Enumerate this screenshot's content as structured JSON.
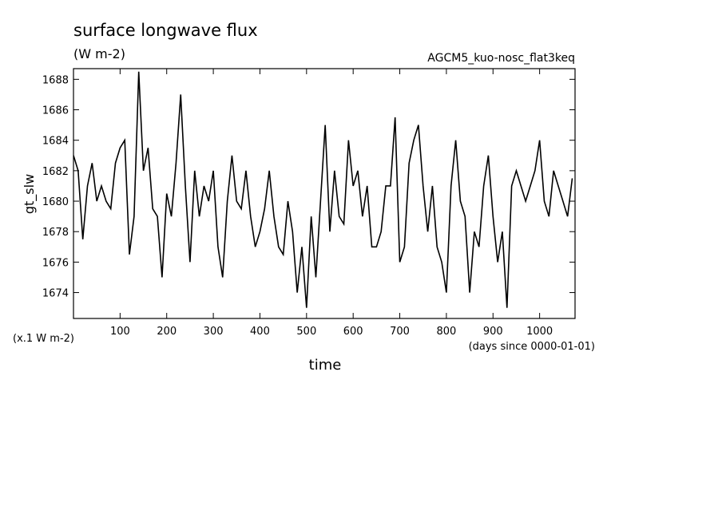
{
  "chart_data": {
    "type": "line",
    "title": "surface longwave flux",
    "subtitle": "(W m-2)",
    "annotation": "AGCM5_kuo-nosc_flat3keq",
    "y_label": "gt_slw",
    "y_unit": "(x.1 W m-2)",
    "x_label": "time",
    "x_unit": "(days since 0000-01-01)",
    "xlim": [
      0,
      1076
    ],
    "ylim": [
      1672.3,
      1688.7
    ],
    "xticks": [
      100,
      200,
      300,
      400,
      500,
      600,
      700,
      800,
      900,
      1000
    ],
    "yticks": [
      1674,
      1676,
      1678,
      1680,
      1682,
      1684,
      1686,
      1688
    ],
    "grid": false,
    "x": [
      0,
      10,
      20,
      30,
      40,
      50,
      60,
      70,
      80,
      90,
      100,
      110,
      120,
      130,
      140,
      150,
      160,
      170,
      180,
      190,
      200,
      210,
      220,
      230,
      240,
      250,
      260,
      270,
      280,
      290,
      300,
      310,
      320,
      330,
      340,
      350,
      360,
      370,
      380,
      390,
      400,
      410,
      420,
      430,
      440,
      450,
      460,
      470,
      480,
      490,
      500,
      510,
      520,
      530,
      540,
      550,
      560,
      570,
      580,
      590,
      600,
      610,
      620,
      630,
      640,
      650,
      660,
      670,
      680,
      690,
      700,
      710,
      720,
      730,
      740,
      750,
      760,
      770,
      780,
      790,
      800,
      810,
      820,
      830,
      840,
      850,
      860,
      870,
      880,
      890,
      900,
      910,
      920,
      930,
      940,
      950,
      960,
      970,
      980,
      990,
      1000,
      1010,
      1020,
      1030,
      1040,
      1050,
      1060,
      1070
    ],
    "series": [
      {
        "name": "gt_slw",
        "color": "#000000",
        "values": [
          1683,
          1682,
          1677.5,
          1681,
          1682.5,
          1680,
          1681,
          1680,
          1679.5,
          1682.5,
          1683.5,
          1684,
          1676.5,
          1679,
          1688.5,
          1682,
          1683.5,
          1679.5,
          1679,
          1675,
          1680.5,
          1679,
          1682.5,
          1687,
          1681,
          1676,
          1682,
          1679,
          1681,
          1680,
          1682,
          1677,
          1675,
          1680,
          1683,
          1680,
          1679.5,
          1682,
          1679,
          1677,
          1678,
          1679.5,
          1682,
          1679,
          1677,
          1676.5,
          1680,
          1678,
          1674,
          1677,
          1673,
          1679,
          1675,
          1680,
          1685,
          1678,
          1682,
          1679,
          1678.5,
          1684,
          1681,
          1682,
          1679,
          1681,
          1677,
          1677,
          1678,
          1681,
          1681,
          1685.5,
          1676,
          1677,
          1682.5,
          1684,
          1685,
          1681,
          1678,
          1681,
          1677,
          1676,
          1674,
          1681,
          1684,
          1680,
          1679,
          1674,
          1678,
          1677,
          1681,
          1683,
          1679,
          1676,
          1678,
          1673,
          1681,
          1682,
          1681,
          1680,
          1681,
          1682,
          1684,
          1680,
          1679,
          1682,
          1681,
          1680,
          1679,
          1681.5
        ]
      }
    ]
  }
}
